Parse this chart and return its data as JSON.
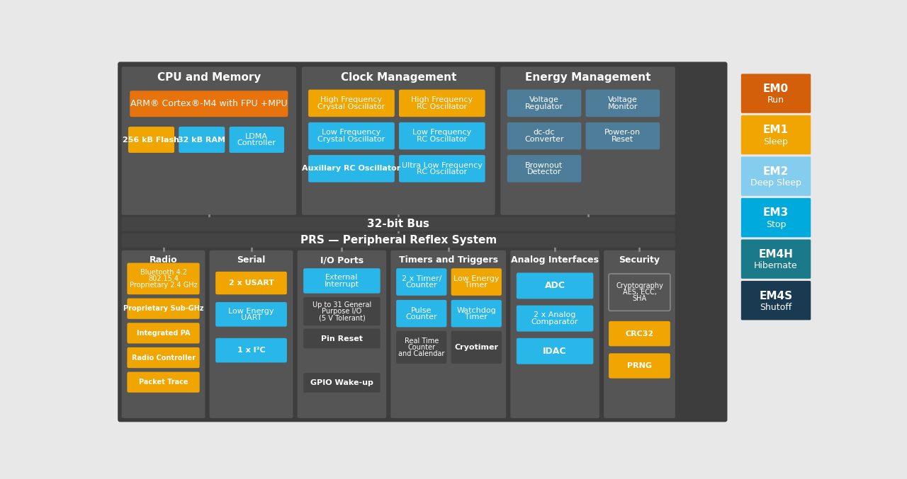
{
  "bg_color": "#e8e8e8",
  "dark_panel": "#555555",
  "darker_panel": "#444444",
  "orange": "#E8720C",
  "amber": "#F0A500",
  "light_blue": "#29B6E8",
  "steel_blue": "#4d7d99",
  "em_colors": [
    "#D45F0A",
    "#F0A500",
    "#85CDEF",
    "#00AADD",
    "#1A7A8A",
    "#1A3A52"
  ],
  "em_labels": [
    [
      "EM0",
      "Run"
    ],
    [
      "EM1",
      "Sleep"
    ],
    [
      "EM2",
      "Deep Sleep"
    ],
    [
      "EM3",
      "Stop"
    ],
    [
      "EM4H",
      "Hibernate"
    ],
    [
      "EM4S",
      "Shutoff"
    ]
  ]
}
